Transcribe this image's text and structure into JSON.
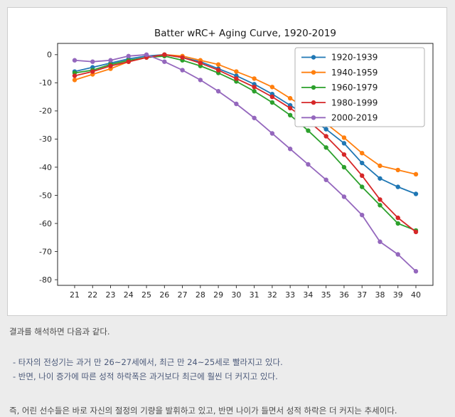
{
  "chart_data": {
    "type": "line",
    "title": "Batter wRC+ Aging Curve, 1920-2019",
    "xlabel": "",
    "ylabel": "",
    "x": [
      21,
      22,
      23,
      24,
      25,
      26,
      27,
      28,
      29,
      30,
      31,
      32,
      33,
      34,
      35,
      36,
      37,
      38,
      39,
      40
    ],
    "xticks": [
      21,
      22,
      23,
      24,
      25,
      26,
      27,
      28,
      29,
      30,
      31,
      32,
      33,
      34,
      35,
      36,
      37,
      38,
      39,
      40
    ],
    "yticks": [
      0,
      -10,
      -20,
      -30,
      -40,
      -50,
      -60,
      -70,
      -80
    ],
    "ylim": [
      -82,
      4
    ],
    "grid": false,
    "legend_position": "upper right",
    "axis_color": "#262626",
    "legend_border_color": "#b0b0b0",
    "series": [
      {
        "name": "1920-1939",
        "color": "#1f77b4",
        "values": [
          -6,
          -4.5,
          -3,
          -1.5,
          -0.5,
          0,
          -1,
          -2.5,
          -5,
          -7.5,
          -10.5,
          -14,
          -18,
          -22,
          -26.5,
          -31.5,
          -38.5,
          -44,
          -47,
          -49.5
        ]
      },
      {
        "name": "1940-1959",
        "color": "#ff7f0e",
        "values": [
          -9,
          -7,
          -5,
          -2.5,
          -1,
          0,
          -0.5,
          -2,
          -3.5,
          -6,
          -8.5,
          -11.5,
          -15.5,
          -19.5,
          -24.5,
          -29.5,
          -35,
          -39.5,
          -41,
          -42.5
        ]
      },
      {
        "name": "1960-1979",
        "color": "#2ca02c",
        "values": [
          -6.5,
          -5.5,
          -3.5,
          -2,
          -1,
          -0.5,
          -2,
          -4,
          -6.5,
          -9.5,
          -13,
          -17,
          -21.5,
          -27,
          -33,
          -40,
          -47,
          -53.5,
          -60,
          -62.5
        ]
      },
      {
        "name": "1980-1999",
        "color": "#d62728",
        "values": [
          -7.5,
          -6,
          -4,
          -2.5,
          -1,
          0,
          -1,
          -3,
          -5.5,
          -8.5,
          -11.5,
          -15,
          -19,
          -23.5,
          -29,
          -35.5,
          -43,
          -51.5,
          -58,
          -63
        ]
      },
      {
        "name": "2000-2019",
        "color": "#9467bd",
        "values": [
          -2,
          -2.5,
          -2,
          -0.5,
          0,
          -2.5,
          -5.5,
          -9,
          -13,
          -17.5,
          -22.5,
          -28,
          -33.5,
          -39,
          -44.5,
          -50.5,
          -57,
          -66.5,
          -71,
          -77
        ]
      }
    ]
  },
  "notes": {
    "intro": "결과를 해석하면 다음과 같다.",
    "bullets": [
      "- 타자의 전성기는 과거 만 26~27세에서, 최근 만 24~25세로 빨라지고 있다.",
      "- 반면, 나이 증가에 따른 성적 하락폭은 과거보다 최근에 훨씬 더 커지고 있다."
    ],
    "conclusion": "즉, 어린 선수들은 바로 자신의 절정의 기량을 발휘하고 있고, 반면 나이가 들면서 성적 하락은 더 커지는 추세이다."
  }
}
